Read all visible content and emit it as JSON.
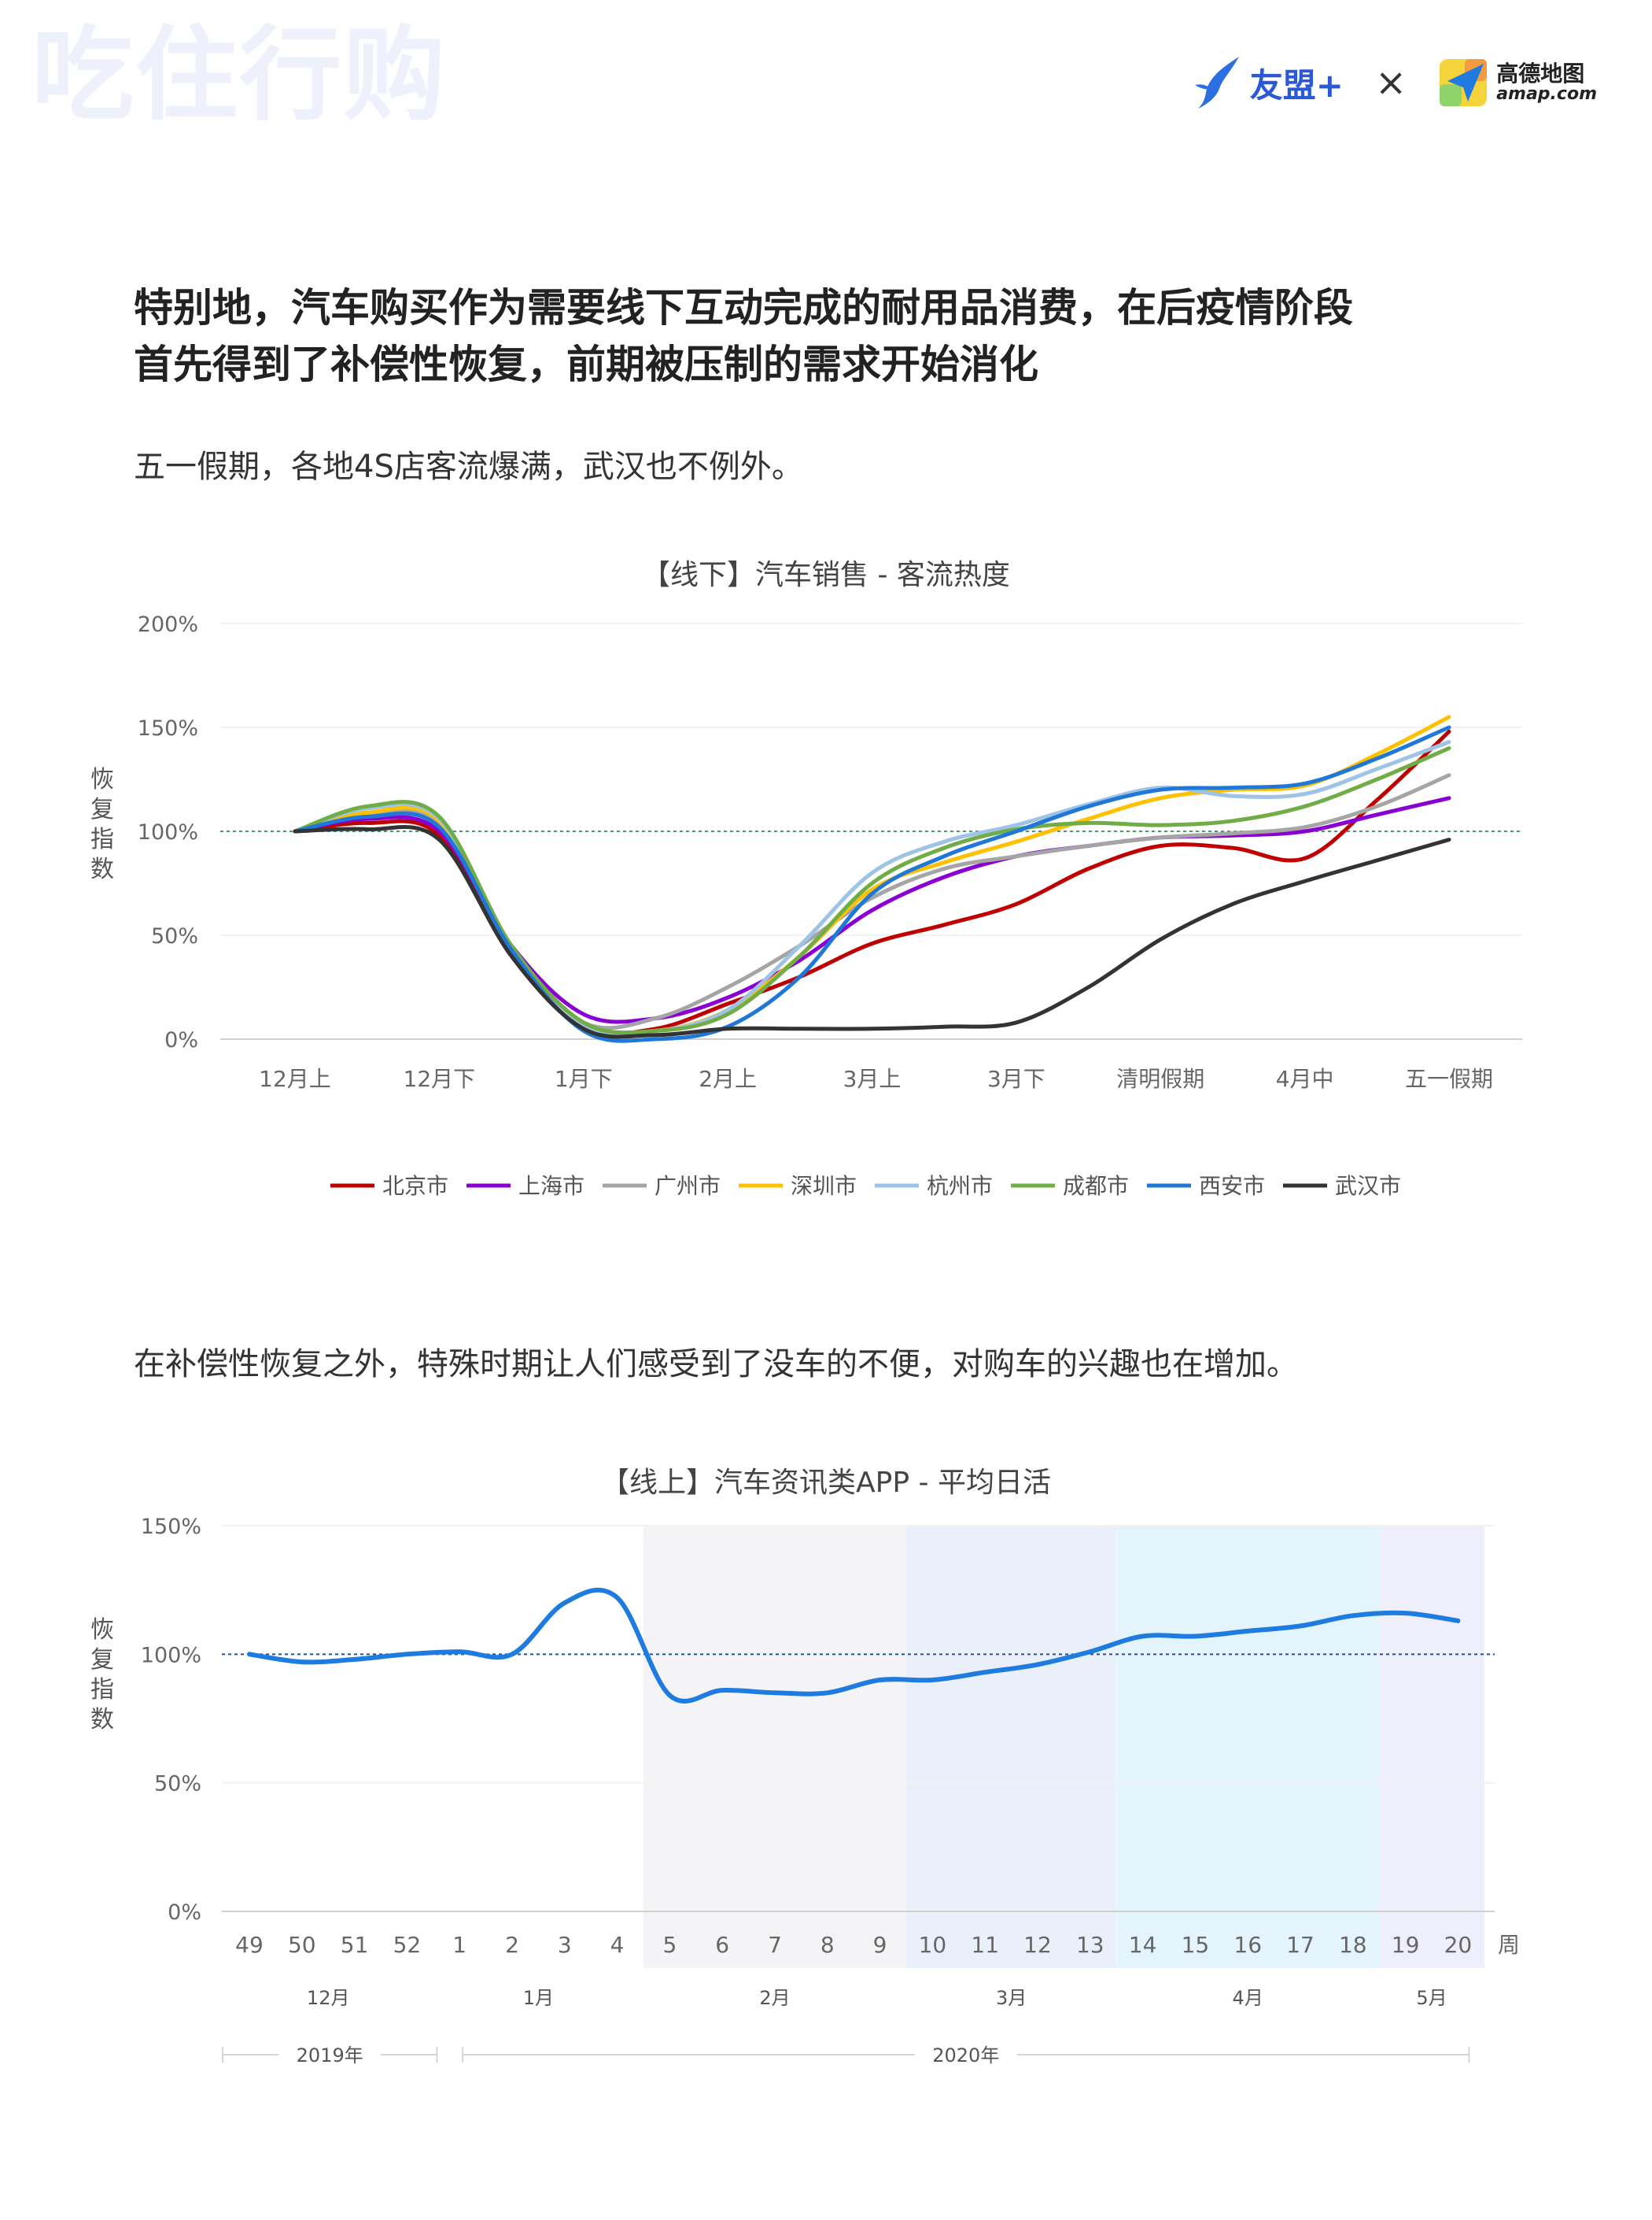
{
  "header": {
    "brand_mark": "吃住行购",
    "umeng_label": "友盟+",
    "cross_label": "×",
    "amap_cn": "高德地图",
    "amap_en": "amap.com"
  },
  "heading": {
    "line1": "特别地，汽车购买作为需要线下互动完成的耐用品消费，在后疫情阶段",
    "line2": "首先得到了补偿性恢复，前期被压制的需求开始消化"
  },
  "para1": "五一假期，各地4S店客流爆满，武汉也不例外。",
  "para2": "在补偿性恢复之外，特殊时期让人们感受到了没车的不便，对购车的兴趣也在增加。",
  "chart_data": [
    {
      "type": "line",
      "title": "【线下】汽车销售 - 客流热度",
      "ylabel": "恢复指数",
      "ylim": [
        0,
        200
      ],
      "yticks": [
        "0%",
        "50%",
        "100%",
        "150%",
        "200%"
      ],
      "reference_line": 100,
      "grid": true,
      "legend_position": "bottom",
      "categories": [
        "12月上",
        "12月下",
        "1月下",
        "2月上",
        "3月上",
        "3月下",
        "清明假期",
        "4月中",
        "五一假期"
      ],
      "x": [
        0,
        0.5,
        1,
        1.5,
        2,
        2.5,
        3,
        3.5,
        4,
        4.5,
        5,
        5.5,
        6,
        6.5,
        7,
        7.5,
        8
      ],
      "series": [
        {
          "name": "北京市",
          "color": "#c00000",
          "values": [
            100,
            104,
            98,
            40,
            6,
            5,
            17,
            30,
            46,
            55,
            65,
            82,
            93,
            92,
            87,
            115,
            148
          ]
        },
        {
          "name": "上海市",
          "color": "#8a00d4",
          "values": [
            100,
            106,
            100,
            45,
            12,
            10,
            20,
            38,
            62,
            78,
            88,
            93,
            97,
            98,
            100,
            108,
            116
          ]
        },
        {
          "name": "广州市",
          "color": "#a5a5a5",
          "values": [
            100,
            108,
            103,
            44,
            8,
            10,
            25,
            45,
            68,
            82,
            88,
            93,
            97,
            99,
            102,
            112,
            127
          ]
        },
        {
          "name": "深圳市",
          "color": "#ffc000",
          "values": [
            100,
            109,
            105,
            44,
            8,
            4,
            14,
            40,
            72,
            85,
            95,
            106,
            116,
            120,
            122,
            137,
            155
          ]
        },
        {
          "name": "杭州市",
          "color": "#9dc3e6",
          "values": [
            100,
            111,
            106,
            44,
            7,
            4,
            14,
            45,
            80,
            95,
            103,
            113,
            121,
            117,
            118,
            130,
            143
          ]
        },
        {
          "name": "成都市",
          "color": "#70ad47",
          "values": [
            100,
            112,
            107,
            45,
            8,
            4,
            12,
            40,
            75,
            92,
            101,
            104,
            103,
            105,
            112,
            125,
            140
          ]
        },
        {
          "name": "西安市",
          "color": "#1f78d8",
          "values": [
            100,
            107,
            102,
            43,
            4,
            0,
            6,
            30,
            70,
            88,
            100,
            112,
            120,
            121,
            123,
            135,
            150
          ]
        },
        {
          "name": "武汉市",
          "color": "#333333",
          "values": [
            100,
            101,
            96,
            40,
            5,
            2,
            5,
            5,
            5,
            6,
            8,
            25,
            48,
            65,
            76,
            86,
            96
          ]
        }
      ]
    },
    {
      "type": "line",
      "title": "【线上】汽车资讯类APP - 平均日活",
      "ylabel": "恢复指数",
      "ylim": [
        0,
        150
      ],
      "yticks": [
        "0%",
        "50%",
        "100%",
        "150%"
      ],
      "reference_line": 100,
      "x_axis_unit": "周",
      "categories": [
        "49",
        "50",
        "51",
        "52",
        "1",
        "2",
        "3",
        "4",
        "5",
        "6",
        "7",
        "8",
        "9",
        "10",
        "11",
        "12",
        "13",
        "14",
        "15",
        "16",
        "17",
        "18",
        "19",
        "20"
      ],
      "months": [
        {
          "label": "12月",
          "from": "49",
          "to": "52"
        },
        {
          "label": "1月",
          "from": "1",
          "to": "4"
        },
        {
          "label": "2月",
          "from": "5",
          "to": "9"
        },
        {
          "label": "3月",
          "from": "10",
          "to": "13"
        },
        {
          "label": "4月",
          "from": "14",
          "to": "18"
        },
        {
          "label": "5月",
          "from": "19",
          "to": "20"
        }
      ],
      "years": [
        {
          "label": "2019年",
          "from": "49",
          "to": "52"
        },
        {
          "label": "2020年",
          "from": "1",
          "to": "20"
        }
      ],
      "bands": [
        {
          "from": "5",
          "to": "9",
          "color": "#f4f4f6"
        },
        {
          "from": "10",
          "to": "13",
          "color": "#eaf0fa"
        },
        {
          "from": "14",
          "to": "18",
          "color": "#e3f4fc"
        },
        {
          "from": "19",
          "to": "20",
          "color": "#efeefb"
        }
      ],
      "series": [
        {
          "color": "#1e7be0",
          "values": [
            100,
            97,
            98,
            100,
            101,
            100,
            120,
            122,
            84,
            86,
            85,
            85,
            90,
            90,
            93,
            96,
            101,
            107,
            107,
            109,
            111,
            115,
            116,
            113
          ]
        }
      ]
    }
  ]
}
